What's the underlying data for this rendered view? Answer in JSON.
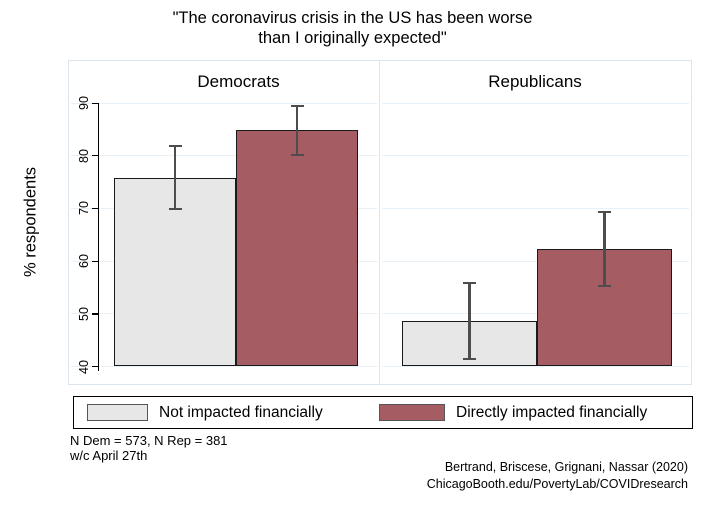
{
  "title": {
    "line1": "\"The coronavirus crisis in the US has been worse",
    "line2": "than I originally expected\""
  },
  "chart_data": {
    "type": "bar",
    "title": "\"The coronavirus crisis in the US has been worse than I originally expected\"",
    "panels": [
      "Democrats",
      "Republicans"
    ],
    "ylabel": "% respondents",
    "ylim": [
      40,
      90
    ],
    "yticks": [
      40,
      50,
      60,
      70,
      80,
      90
    ],
    "grid": true,
    "legend_position": "bottom",
    "error_bars": true,
    "series": [
      {
        "name": "Not impacted financially",
        "color": "#e7e7e7",
        "values": [
          75.7,
          48.5
        ],
        "ci_low": [
          69.8,
          41.3
        ],
        "ci_high": [
          81.7,
          55.7
        ]
      },
      {
        "name": "Directly impacted financially",
        "color": "#a55c62",
        "values": [
          84.8,
          62.2
        ],
        "ci_low": [
          80.1,
          55.2
        ],
        "ci_high": [
          89.4,
          69.3
        ]
      }
    ]
  },
  "notes": {
    "line1": "N Dem = 573, N Rep = 381",
    "line2": "w/c April 27th"
  },
  "credit": {
    "line1": "Bertrand, Briscese, Grignani, Nassar (2020)",
    "line2": "ChicagoBooth.edu/PovertyLab/COVIDresearch"
  },
  "colors": {
    "bar_not_impacted": "#e7e7e7",
    "bar_directly_impacted": "#a55c62",
    "bar_border": "#1a1a1a",
    "error_bar": "#4d4d4d",
    "gridline": "#e9f1f8",
    "panel_border": "#dde6ee",
    "axis": "#000000"
  }
}
